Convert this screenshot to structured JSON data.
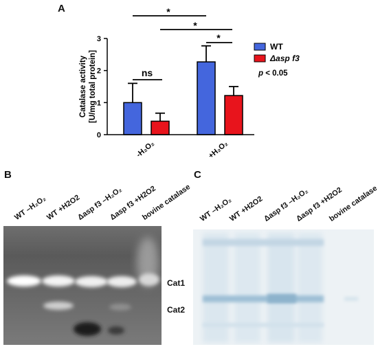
{
  "panels": {
    "a_label": "A",
    "b_label": "B",
    "c_label": "C"
  },
  "chart_data": {
    "type": "bar",
    "categories": [
      "-H₂O₂",
      "+H₂O₂"
    ],
    "series": [
      {
        "name": "WT",
        "values": [
          1.0,
          2.27
        ],
        "errors": [
          0.6,
          0.5
        ],
        "color": "#4466dd"
      },
      {
        "name": "Δasp f3",
        "values": [
          0.42,
          1.22
        ],
        "errors": [
          0.25,
          0.28
        ],
        "color": "#e8141c"
      }
    ],
    "ylabel_line1": "Catalase activity",
    "ylabel_line2": "[U/mg total protein]",
    "ylim": [
      0,
      3
    ],
    "yticks": [
      "0",
      "1",
      "2",
      "3"
    ],
    "legend_position": "right",
    "significance": [
      {
        "text": "ns"
      },
      {
        "text": "*"
      },
      {
        "text": "*"
      },
      {
        "text": "*"
      }
    ],
    "p_value_prefix": "p",
    "p_value_text": "< 0.05"
  },
  "gel_b": {
    "lanes": [
      "WT –H₂O₂",
      "WT +H2O2",
      "Δasp f3 –H₂O₂",
      "Δasp f3 +H2O2",
      "bovine catalase"
    ],
    "band_labels": [
      "Cat1",
      "Cat2"
    ]
  },
  "gel_c": {
    "lanes": [
      "WT –H₂O₂",
      "WT +H2O2",
      "Δasp f3 –H₂O₂",
      "Δasp f3 +H2O2",
      "bovine catalase"
    ]
  }
}
